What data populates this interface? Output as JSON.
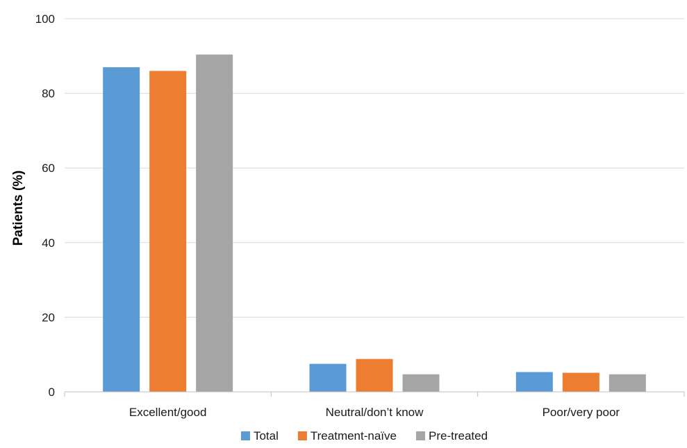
{
  "chart_data": {
    "type": "bar",
    "title": "",
    "xlabel": "",
    "ylabel": "Patients (%)",
    "ylim": [
      0,
      100
    ],
    "yticks": [
      0,
      20,
      40,
      60,
      80,
      100
    ],
    "categories": [
      "Excellent/good",
      "Neutral/don’t know",
      "Poor/very poor"
    ],
    "series": [
      {
        "name": "Total",
        "color": "#5b9bd5",
        "values": [
          87,
          7.5,
          5.3
        ]
      },
      {
        "name": "Treatment-naïve",
        "color": "#ed7d31",
        "values": [
          86,
          8.8,
          5.1
        ]
      },
      {
        "name": "Pre-treated",
        "color": "#a5a5a5",
        "values": [
          90.4,
          4.7,
          4.7
        ]
      }
    ],
    "grid": true,
    "legend_position": "bottom"
  }
}
